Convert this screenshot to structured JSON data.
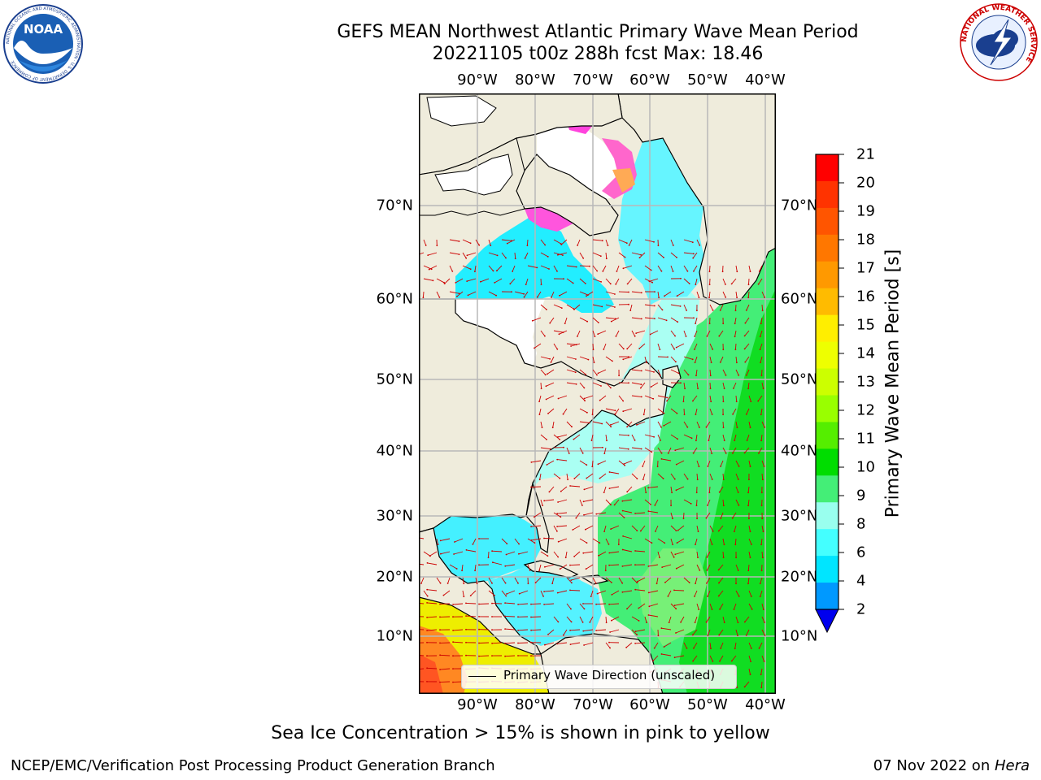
{
  "title_line1": "GEFS MEAN Northwest Atlantic Primary Wave Mean Period",
  "title_line2": "20221105 t00z 288h fcst   Max: 18.46",
  "lon_labels": [
    "90°W",
    "80°W",
    "70°W",
    "60°W",
    "50°W",
    "40°W"
  ],
  "lat_labels": [
    "70°N",
    "60°N",
    "50°N",
    "40°N",
    "30°N",
    "20°N",
    "10°N"
  ],
  "colorbar": {
    "label": "Primary Wave Mean Period [s]",
    "ticks": [
      "21",
      "20",
      "19",
      "18",
      "17",
      "16",
      "15",
      "14",
      "13",
      "12",
      "11",
      "10",
      "9",
      "8",
      "6",
      "4",
      "2"
    ],
    "colors": [
      "#ff0000",
      "#ff3300",
      "#ff5500",
      "#ff7700",
      "#ff9900",
      "#ffbb00",
      "#ffee00",
      "#eeff00",
      "#ccff00",
      "#99ff00",
      "#55ee00",
      "#00dd00",
      "#44ee77",
      "#99ffee",
      "#44ffff",
      "#00e5ff",
      "#0099ff"
    ],
    "extend_color": "#0000ee"
  },
  "legend_label": "Primary Wave Direction (unscaled)",
  "footer_note": "Sea Ice Concentration > 15% is shown in pink to yellow",
  "credit_left": "NCEP/EMC/Verification Post Processing Product Generation Branch",
  "credit_date": "07 Nov 2022 on ",
  "credit_machine": "Hera",
  "logos": {
    "noaa_text": "NOAA",
    "noaa_ring_text": "NATIONAL OCEANIC AND ATMOSPHERIC ADMINISTRATION · U.S. DEPARTMENT OF COMMERCE",
    "nws_ring_text": "NATIONAL WEATHER SERVICE"
  },
  "colors": {
    "land": "#efecdc",
    "ice_white": "#ffffff",
    "arrow": "#cc0000",
    "grid": "#b8b8b8"
  }
}
